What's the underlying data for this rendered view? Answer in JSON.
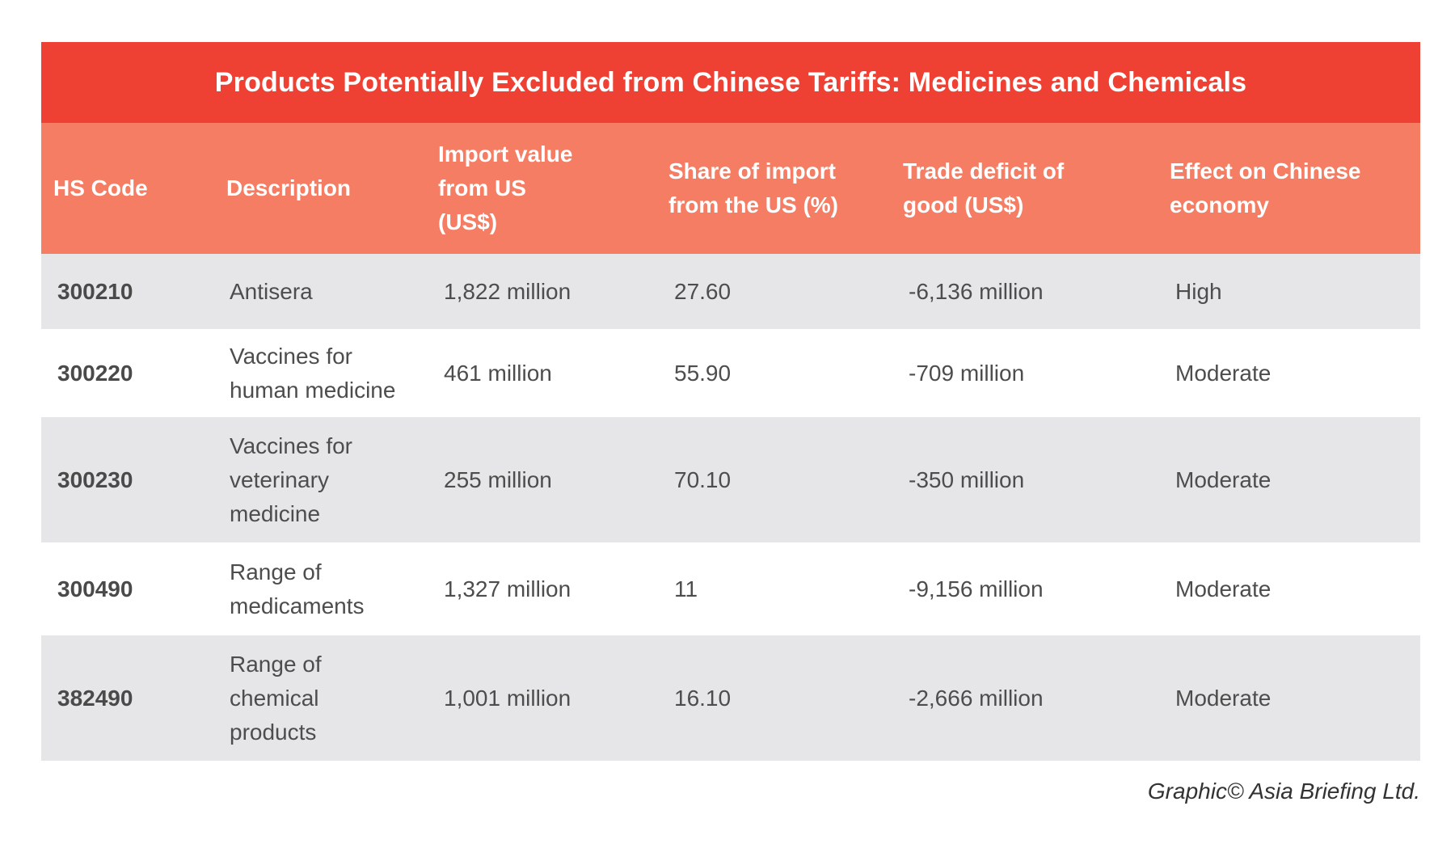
{
  "chart_data": {
    "type": "table",
    "title": "Products Potentially Excluded from Chinese Tariffs: Medicines and Chemicals",
    "columns": [
      "HS Code",
      "Description",
      "Import value from US (US$)",
      "Share of import from the US (%)",
      "Trade deficit of good (US$)",
      "Effect on Chinese economy"
    ],
    "rows": [
      [
        "300210",
        "Antisera",
        "1,822 million",
        "27.60",
        "-6,136 million",
        "High"
      ],
      [
        "300220",
        "Vaccines for human medicine",
        "461 million",
        "55.90",
        "-709 million",
        "Moderate"
      ],
      [
        "300230",
        "Vaccines for veterinary medicine",
        "255 million",
        "70.10",
        "-350 million",
        "Moderate"
      ],
      [
        "300490",
        "Range of medicaments",
        "1,327 million",
        "11",
        "-9,156 million",
        "Moderate"
      ],
      [
        "382490",
        "Range of chemical products",
        "1,001 million",
        "16.10",
        "-2,666 million",
        "Moderate"
      ]
    ]
  },
  "table": {
    "headers": [
      [
        "HS Code"
      ],
      [
        "Description"
      ],
      [
        "Import value",
        "from US",
        "(US$)"
      ],
      [
        "Share of import",
        "from the US (%)"
      ],
      [
        "Trade deficit of",
        "good (US$)"
      ],
      [
        "Effect on Chinese",
        "economy"
      ]
    ],
    "description_lines": [
      [
        "Antisera"
      ],
      [
        "Vaccines for",
        "human medicine"
      ],
      [
        "Vaccines for",
        "veterinary",
        "medicine"
      ],
      [
        "Range of",
        "medicaments"
      ],
      [
        "Range of",
        "chemical",
        "products"
      ]
    ]
  },
  "colors": {
    "title_bg": "#ee4133",
    "header_bg": "#f47d63",
    "row_alt_bg": "#e6e6e8"
  },
  "credit": "Graphic© Asia Briefing Ltd."
}
